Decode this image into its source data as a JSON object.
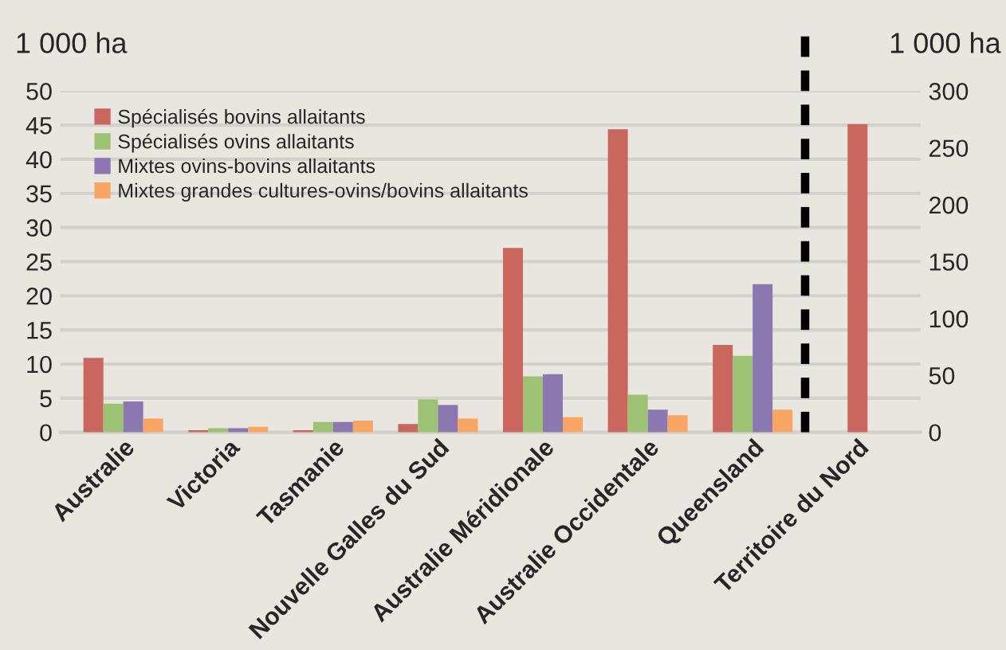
{
  "chart_data": {
    "type": "bar",
    "ylabel": "1 000 ha",
    "y2label": "1 000 ha",
    "categories": [
      "Australie",
      "Victoria",
      "Tasmanie",
      "Nouvelle Galles du Sud",
      "Australie Méridionale",
      "Australie Occidentale",
      "Queensland",
      "Territoire du Nord"
    ],
    "series": [
      {
        "name": "Spécialisés bovins allaitants",
        "color": "#c9675f",
        "values": [
          10.9,
          0.3,
          0.3,
          1.2,
          27,
          44.4,
          12.8,
          null
        ]
      },
      {
        "name": "Spécialisés ovins allaitants",
        "color": "#9dc273",
        "values": [
          4.2,
          0.6,
          1.5,
          4.8,
          8.2,
          5.5,
          11.2,
          null
        ]
      },
      {
        "name": "Mixtes ovins-bovins allaitants",
        "color": "#8b78b0",
        "values": [
          4.5,
          0.6,
          1.5,
          4.0,
          8.5,
          3.3,
          21.7,
          null
        ]
      },
      {
        "name": "Mixtes grandes cultures-ovins/bovins allaitants",
        "color": "#f9a664",
        "values": [
          2.0,
          0.8,
          1.7,
          2.0,
          2.2,
          2.5,
          3.3,
          null
        ]
      },
      {
        "color": "#c9675f",
        "axis": "y2",
        "values": [
          null,
          null,
          null,
          null,
          null,
          null,
          null,
          271
        ]
      }
    ],
    "ylim": [
      0,
      50
    ],
    "yticks": [
      0,
      5,
      10,
      15,
      20,
      25,
      30,
      35,
      40,
      45,
      50
    ],
    "y2lim": [
      0,
      300
    ],
    "y2ticks": [
      0,
      50,
      100,
      150,
      200,
      250,
      300
    ],
    "grid": "y",
    "legend": "top left"
  }
}
